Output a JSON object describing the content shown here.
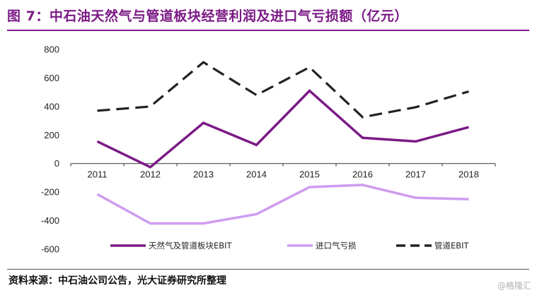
{
  "title": "图 7：中石油天然气与管道板块经营利润及进口气亏损额（亿元）",
  "source": "资料来源：中石油公司公告，光大证券研究所整理",
  "watermark": "格隆汇",
  "chart_data": {
    "type": "line",
    "x": [
      "2011",
      "2012",
      "2013",
      "2014",
      "2015",
      "2016",
      "2017",
      "2018"
    ],
    "ylim": [
      -600,
      800
    ],
    "yticks": [
      -600,
      -400,
      -200,
      0,
      200,
      400,
      600,
      800
    ],
    "ytick_labels": [
      "-600",
      "-400",
      "-200",
      "0",
      "200",
      "400",
      "600",
      "800"
    ],
    "grid": false,
    "legend_position": "bottom",
    "series": [
      {
        "name": "天然气及管道板块EBIT",
        "color": "#7b1a86",
        "style": "solid",
        "values": [
          155,
          -25,
          285,
          130,
          510,
          180,
          155,
          255
        ]
      },
      {
        "name": "进口气亏损",
        "color": "#cf9cf0",
        "style": "solid",
        "values": [
          -215,
          -420,
          -420,
          -355,
          -165,
          -150,
          -240,
          -250
        ]
      },
      {
        "name": "管道EBIT",
        "color": "#222222",
        "style": "dashed",
        "values": [
          370,
          400,
          710,
          480,
          675,
          325,
          395,
          505
        ]
      }
    ]
  }
}
